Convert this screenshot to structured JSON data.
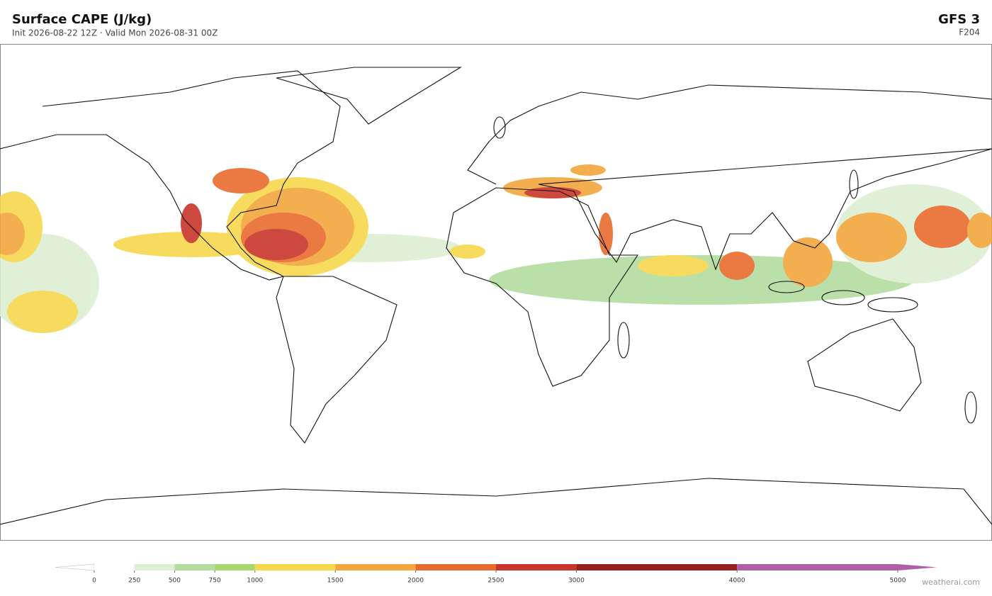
{
  "header": {
    "title": "Surface CAPE  (J/kg)",
    "subtitle": "Init 2026-08-22 12Z  ·  Valid Mon 2026-08-31 00Z",
    "model": "GFS  3",
    "forecast_hour": "F204"
  },
  "colorbar": {
    "ticks": [
      0,
      250,
      500,
      750,
      1000,
      1500,
      2000,
      2500,
      3000,
      4000,
      5000
    ],
    "colors": [
      "#ffffff",
      "#dcefd2",
      "#b3dca0",
      "#a6d86e",
      "#f6d84e",
      "#f2a63c",
      "#e86b2e",
      "#c8352a",
      "#96201f",
      "#b05ea6"
    ]
  },
  "footer": {
    "credit": "weatherai.com"
  }
}
